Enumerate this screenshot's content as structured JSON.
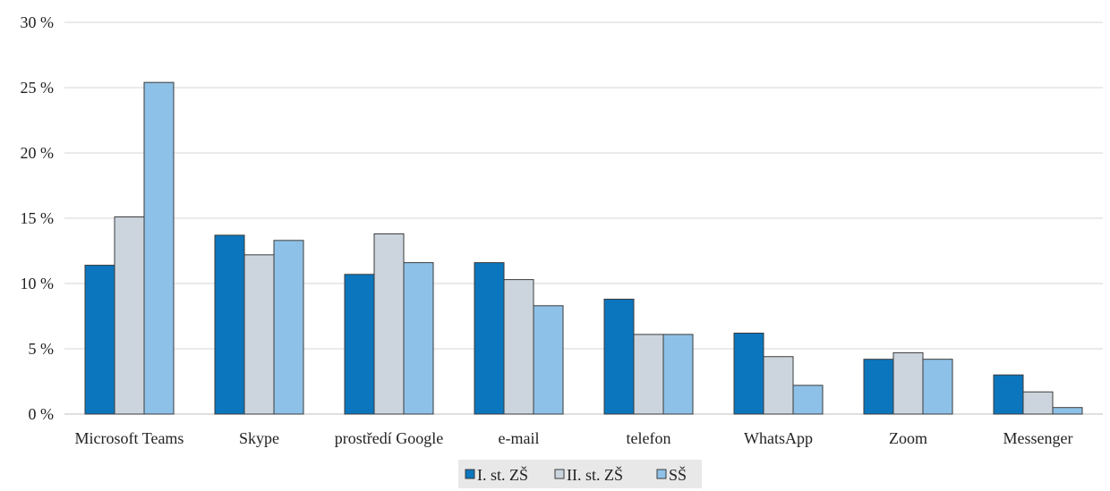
{
  "chart_data": {
    "type": "bar",
    "categories": [
      "Microsoft Teams",
      "Skype",
      "prostředí Google",
      "e-mail",
      "telefon",
      "WhatsApp",
      "Zoom",
      "Messenger"
    ],
    "series": [
      {
        "name": "I. st. ZŠ",
        "color": "#0b76bd",
        "values": [
          11.4,
          13.7,
          10.7,
          11.6,
          8.8,
          6.2,
          4.2,
          3.0
        ]
      },
      {
        "name": "II. st. ZŠ",
        "color": "#ccd5de",
        "values": [
          15.1,
          12.2,
          13.8,
          10.3,
          6.1,
          4.4,
          4.7,
          1.7
        ]
      },
      {
        "name": "SŠ",
        "color": "#8ec1e8",
        "values": [
          25.4,
          13.3,
          11.6,
          8.3,
          6.1,
          2.2,
          4.2,
          0.5
        ]
      }
    ],
    "y_ticks": [
      "0 %",
      "5 %",
      "10 %",
      "15 %",
      "20 %",
      "25 %",
      "30 %"
    ],
    "ylim": [
      0,
      30
    ],
    "grid": true,
    "legend_position": "bottom"
  }
}
